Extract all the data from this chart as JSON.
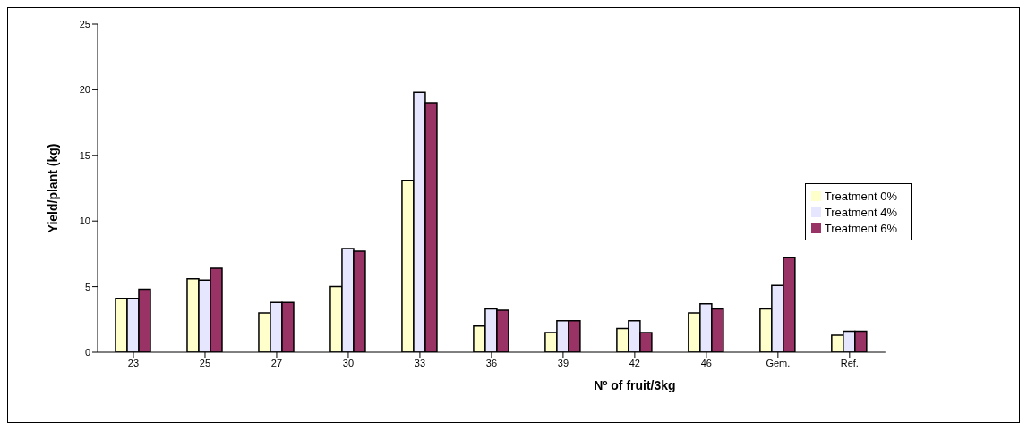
{
  "chart_data": {
    "type": "bar",
    "xlabel": "Nº of fruit/3kg",
    "ylabel": "Yield/plant (kg)",
    "categories": [
      "23",
      "25",
      "27",
      "30",
      "33",
      "36",
      "39",
      "42",
      "46",
      "Gem.",
      "Ref."
    ],
    "series": [
      {
        "name": "Treatment 0%",
        "color": "#ffffcc",
        "values": [
          4.1,
          5.6,
          3.0,
          5.0,
          13.1,
          2.0,
          1.5,
          1.8,
          3.0,
          3.3,
          1.3
        ]
      },
      {
        "name": "Treatment 4%",
        "color": "#e6e6ff",
        "values": [
          4.1,
          5.5,
          3.8,
          7.9,
          19.8,
          3.3,
          2.4,
          2.4,
          3.7,
          5.1,
          1.6
        ]
      },
      {
        "name": "Treatment 6%",
        "color": "#993366",
        "values": [
          4.8,
          6.4,
          3.8,
          7.7,
          19.0,
          3.2,
          2.4,
          1.5,
          3.3,
          7.2,
          1.6
        ]
      }
    ],
    "ylim": [
      0,
      25
    ],
    "yticks": [
      0,
      5,
      10,
      15,
      20,
      25
    ],
    "grid": false,
    "legend": "right"
  }
}
